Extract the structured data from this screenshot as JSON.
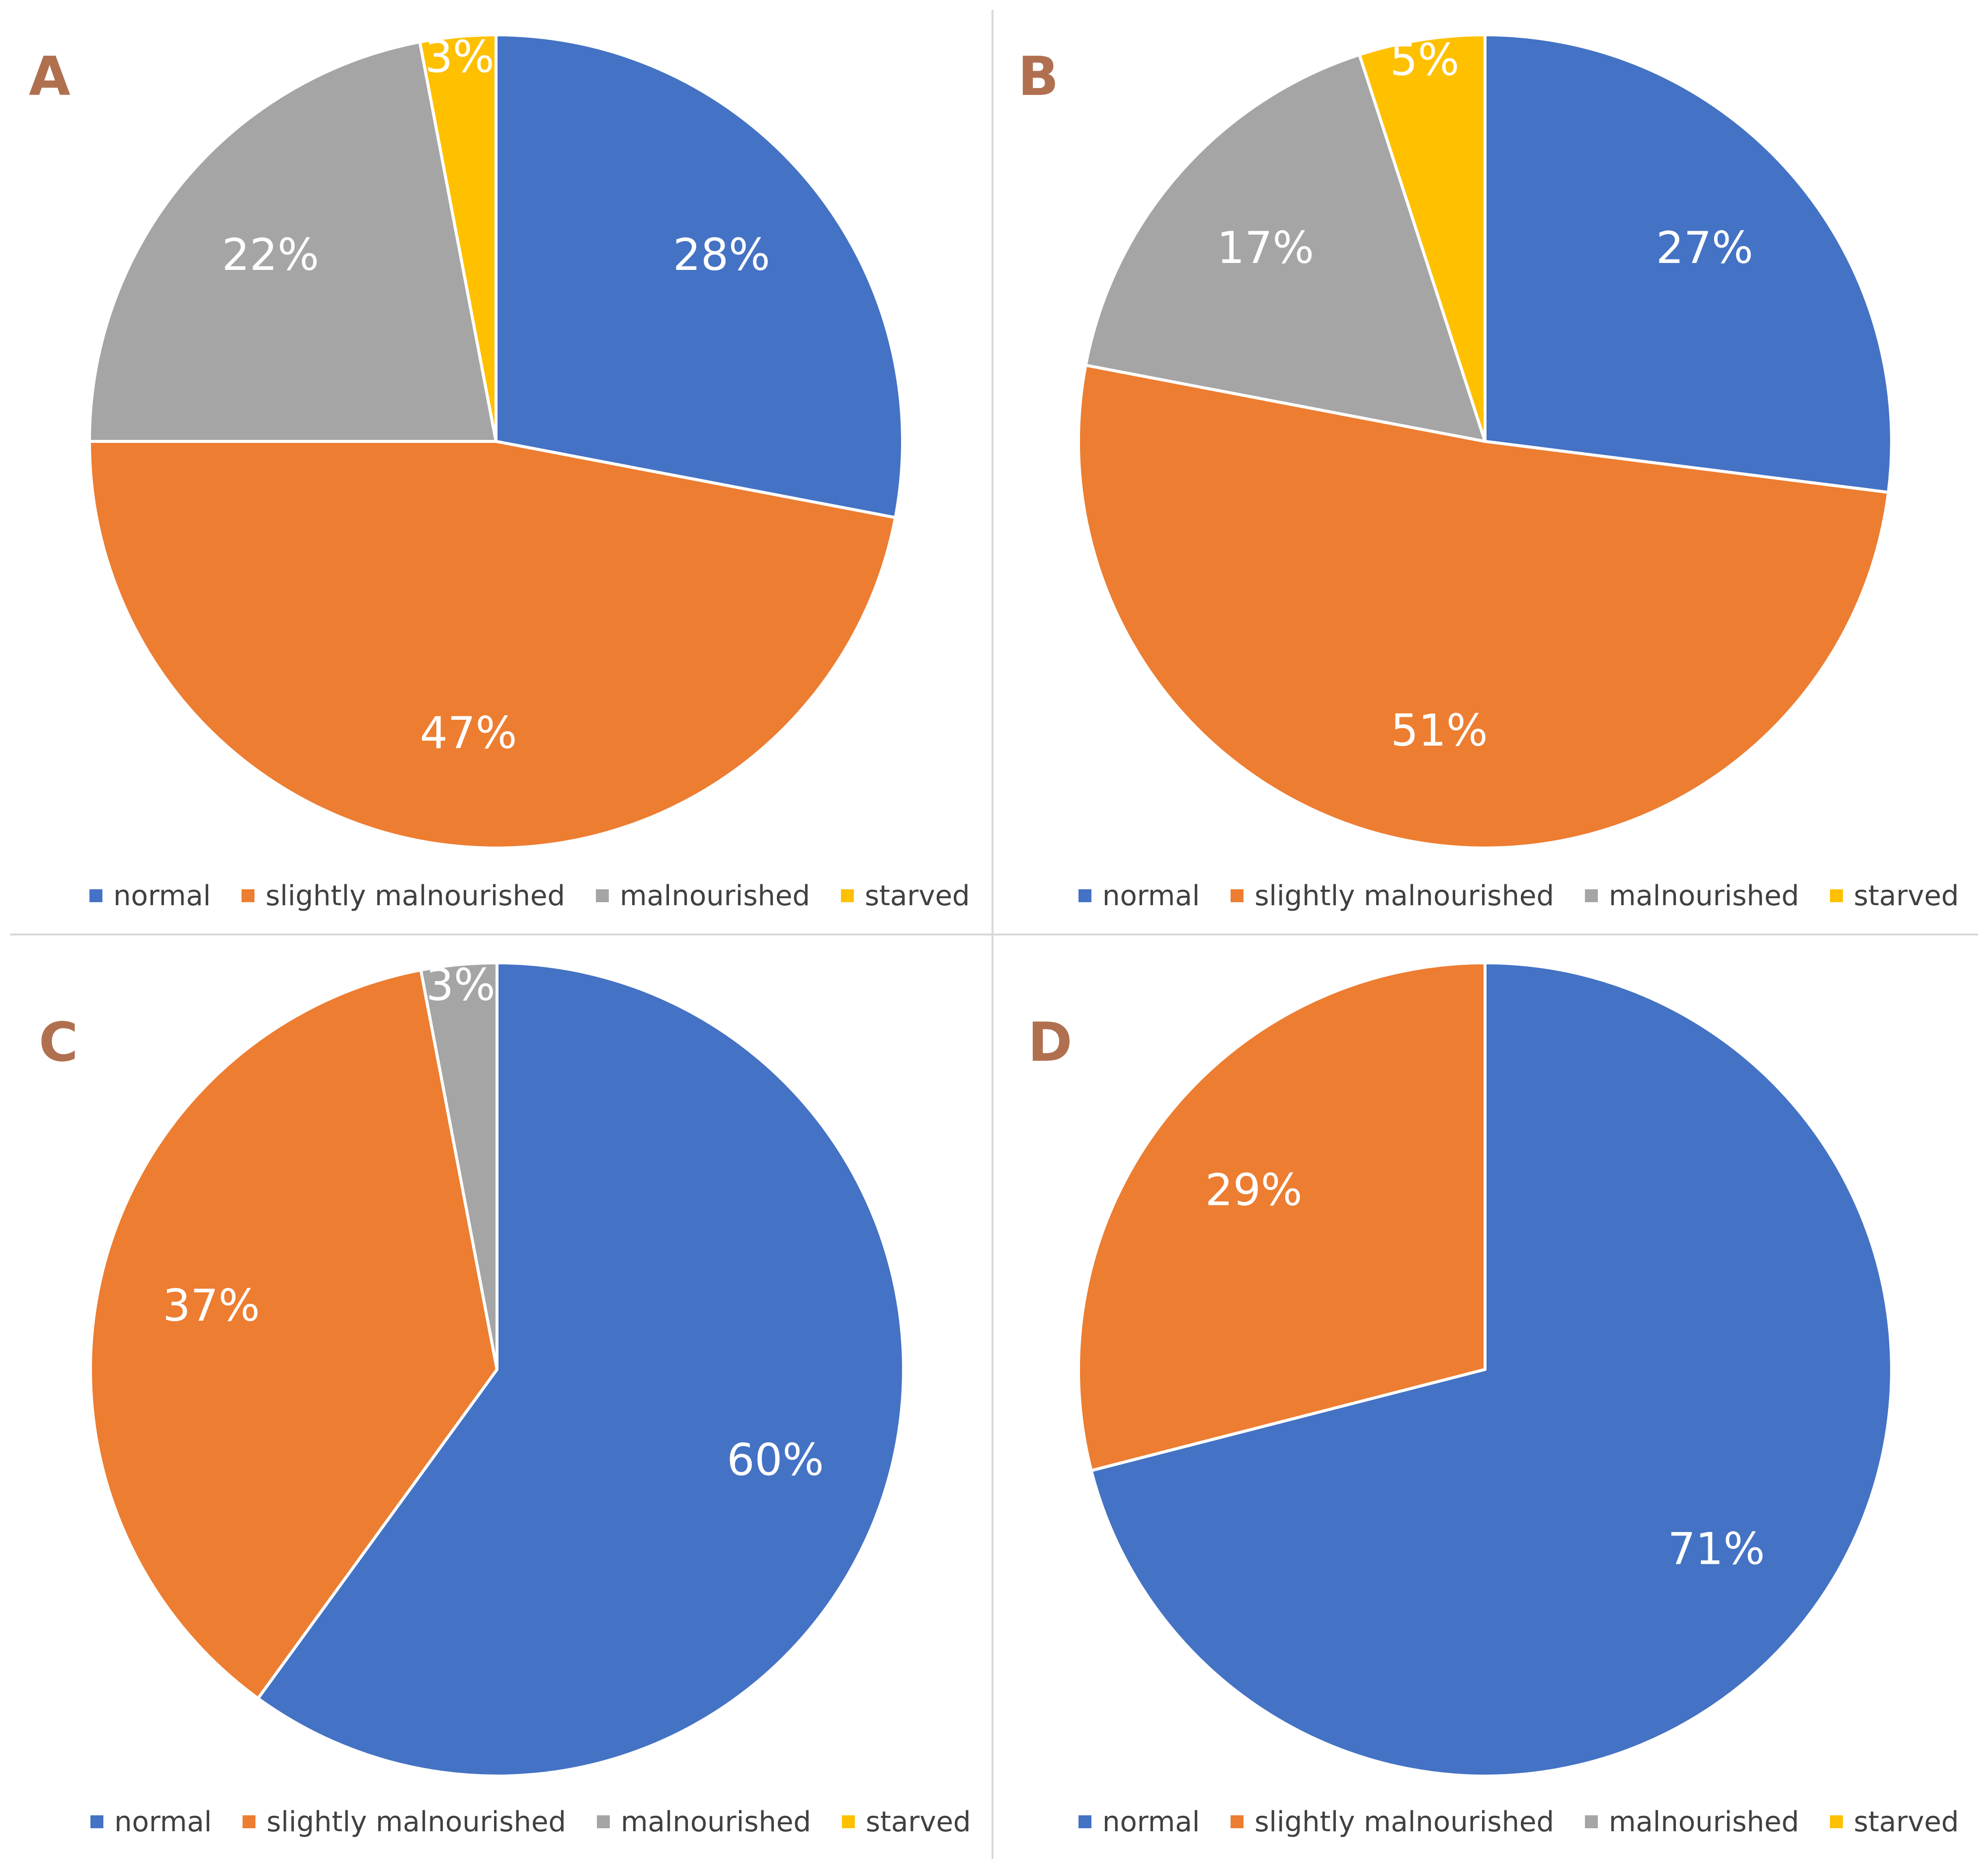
{
  "legend": [
    {
      "label": "normal",
      "color": "#4472C4"
    },
    {
      "label": "slightly malnourished",
      "color": "#ED7D31"
    },
    {
      "label": "malnourished",
      "color": "#A5A5A5"
    },
    {
      "label": "starved",
      "color": "#FFC000"
    }
  ],
  "panel_letter_color": "#B07050",
  "chart_data": [
    {
      "type": "pie",
      "panel": "A",
      "slices": [
        {
          "category": "normal",
          "value": 28,
          "label": "28%",
          "color": "#4472C4"
        },
        {
          "category": "slightly malnourished",
          "value": 47,
          "label": "47%",
          "color": "#ED7D31"
        },
        {
          "category": "malnourished",
          "value": 22,
          "label": "22%",
          "color": "#A5A5A5"
        },
        {
          "category": "starved",
          "value": 3,
          "label": "3%",
          "color": "#FFC000"
        }
      ]
    },
    {
      "type": "pie",
      "panel": "B",
      "slices": [
        {
          "category": "normal",
          "value": 27,
          "label": "27%",
          "color": "#4472C4"
        },
        {
          "category": "slightly malnourished",
          "value": 51,
          "label": "51%",
          "color": "#ED7D31"
        },
        {
          "category": "malnourished",
          "value": 17,
          "label": "17%",
          "color": "#A5A5A5"
        },
        {
          "category": "starved",
          "value": 5,
          "label": "5%",
          "color": "#FFC000"
        }
      ]
    },
    {
      "type": "pie",
      "panel": "C",
      "slices": [
        {
          "category": "normal",
          "value": 60,
          "label": "60%",
          "color": "#4472C4"
        },
        {
          "category": "slightly malnourished",
          "value": 37,
          "label": "37%",
          "color": "#ED7D31"
        },
        {
          "category": "malnourished",
          "value": 3,
          "label": "3%",
          "color": "#A5A5A5"
        },
        {
          "category": "starved",
          "value": 0,
          "label": "",
          "color": "#FFC000"
        }
      ]
    },
    {
      "type": "pie",
      "panel": "D",
      "slices": [
        {
          "category": "normal",
          "value": 71,
          "label": "71%",
          "color": "#4472C4"
        },
        {
          "category": "slightly malnourished",
          "value": 29,
          "label": "29%",
          "color": "#ED7D31"
        },
        {
          "category": "malnourished",
          "value": 0,
          "label": "",
          "color": "#A5A5A5"
        },
        {
          "category": "starved",
          "value": 0,
          "label": "",
          "color": "#FFC000"
        }
      ]
    }
  ]
}
